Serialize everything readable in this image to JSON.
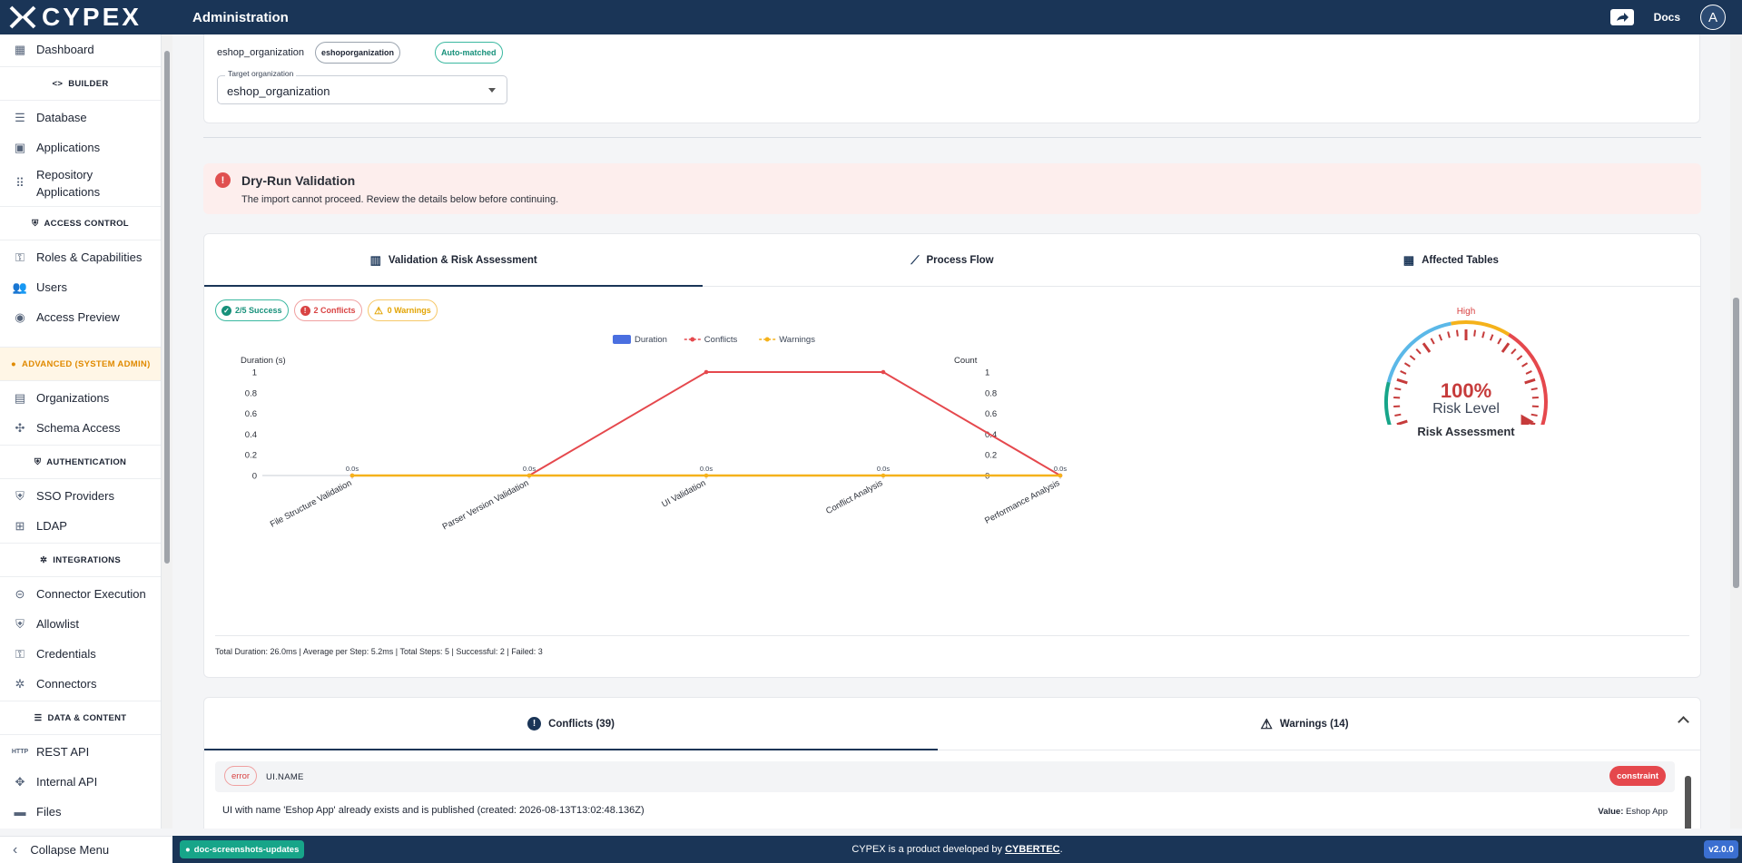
{
  "app": {
    "logo_text": "CYPEX",
    "page_title": "Administration",
    "docs_label": "Docs",
    "avatar_letter": "A"
  },
  "sidebar": {
    "dashboard": "Dashboard",
    "builder_section": "BUILDER",
    "database": "Database",
    "applications": "Applications",
    "repository_applications": "Repository Applications",
    "access_section": "ACCESS CONTROL",
    "roles": "Roles & Capabilities",
    "users": "Users",
    "access_preview": "Access Preview",
    "advanced_section": "ADVANCED (SYSTEM ADMIN)",
    "organizations": "Organizations",
    "schema_access": "Schema Access",
    "auth_section": "AUTHENTICATION",
    "sso": "SSO Providers",
    "ldap": "LDAP",
    "integrations_section": "INTEGRATIONS",
    "connector_execution": "Connector Execution",
    "allowlist": "Allowlist",
    "credentials": "Credentials",
    "connectors": "Connectors",
    "data_section": "DATA & CONTENT",
    "rest_api": "REST API",
    "rest_icon_text": "HTTP",
    "internal_api": "Internal API",
    "files": "Files",
    "collapse": "Collapse Menu"
  },
  "org": {
    "name": "eshop_organization",
    "chip_source": "eshoporganization",
    "chip_match": "Auto-matched",
    "select_label": "Target organization",
    "select_value": "eshop_organization"
  },
  "alert": {
    "title": "Dry-Run Validation",
    "text": "The import cannot proceed. Review the details below before continuing."
  },
  "tabs": {
    "validation": "Validation & Risk Assessment",
    "process": "Process Flow",
    "tables": "Affected Tables"
  },
  "badges": {
    "success": "2/5 Success",
    "conflicts": "2 Conflicts",
    "warnings": "0 Warnings"
  },
  "chart_data": {
    "type": "line",
    "categories": [
      "File Structure Validation",
      "Parser Version Validation",
      "UI Validation",
      "Conflict Analysis",
      "Performance Analysis"
    ],
    "series": [
      {
        "name": "Duration",
        "kind": "bar",
        "axis": "left",
        "values": [
          0,
          0,
          0,
          0,
          0
        ],
        "labels": [
          "0.0s",
          "0.0s",
          "0.0s",
          "0.0s",
          "0.0s"
        ]
      },
      {
        "name": "Conflicts",
        "kind": "line",
        "axis": "right",
        "values": [
          0,
          0,
          1,
          1,
          0
        ]
      },
      {
        "name": "Warnings",
        "kind": "line",
        "axis": "right",
        "values": [
          0,
          0,
          0,
          0,
          0
        ]
      }
    ],
    "ylabel_left": "Duration (s)",
    "ylabel_right": "Count",
    "ylim": [
      0,
      1
    ],
    "yticks": [
      "1",
      "0.8",
      "0.6",
      "0.4",
      "0.2",
      "0"
    ],
    "colors": {
      "Duration": "#4a6fe0",
      "Conflicts": "#e5484d",
      "Warnings": "#f5b21b"
    },
    "legend": "top-center"
  },
  "gauge": {
    "level_label": "High",
    "percent": "100%",
    "value": 1.0,
    "sub_label": "Risk Level",
    "title": "Risk Assessment"
  },
  "summary": "Total Duration: 26.0ms | Average per Step: 5.2ms | Total Steps: 5 | Successful: 2 | Failed: 3",
  "conflicts": {
    "tab_conflicts": "Conflicts (39)",
    "tab_warnings": "Warnings (14)",
    "row": {
      "severity": "error",
      "field": "UI.NAME",
      "type": "constraint",
      "message": "UI with name 'Eshop App' already exists and is published (created: 2026-08-13T13:02:48.136Z)",
      "value_label": "Value:",
      "value": "Eshop App"
    }
  },
  "footer": {
    "branch": "doc-screenshots-updates",
    "text_prefix": "CYPEX is a product developed by ",
    "company": "CYBERTEC",
    "text_suffix": ".",
    "version": "v2.0.0"
  }
}
